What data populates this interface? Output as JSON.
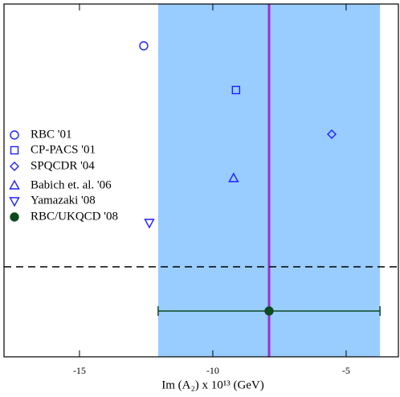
{
  "chart_data": {
    "type": "scatter",
    "xlabel": "Im (A₂) x 10¹³ (GeV)",
    "xlim": [
      -17.83,
      -3.04
    ],
    "xticks": [
      -15,
      -10,
      -5
    ],
    "series": [
      {
        "name": "RBC '01",
        "marker": "circle",
        "color": "#1f1fff",
        "x": [
          -12.59
        ]
      },
      {
        "name": "CP-PACS '01",
        "marker": "square",
        "color": "#1f1fff",
        "x": [
          -9.13
        ]
      },
      {
        "name": "SPQCDR '04",
        "marker": "diamond",
        "color": "#1f1fff",
        "x": [
          -5.54
        ]
      },
      {
        "name": "Babich et. al. '06",
        "marker": "triangle-up",
        "color": "#1f1fff",
        "x": [
          -9.22
        ]
      },
      {
        "name": "Yamazaki '08",
        "marker": "triangle-down",
        "color": "#1f1fff",
        "x": [
          -12.38
        ]
      },
      {
        "name": "RBC/UKQCD '08",
        "marker": "filled-circle",
        "color": "#0d4a1e",
        "x": [
          -7.89
        ],
        "error": [
          4.16
        ],
        "band_color": "#99ccff",
        "line_color": "#9b30d0"
      }
    ]
  }
}
